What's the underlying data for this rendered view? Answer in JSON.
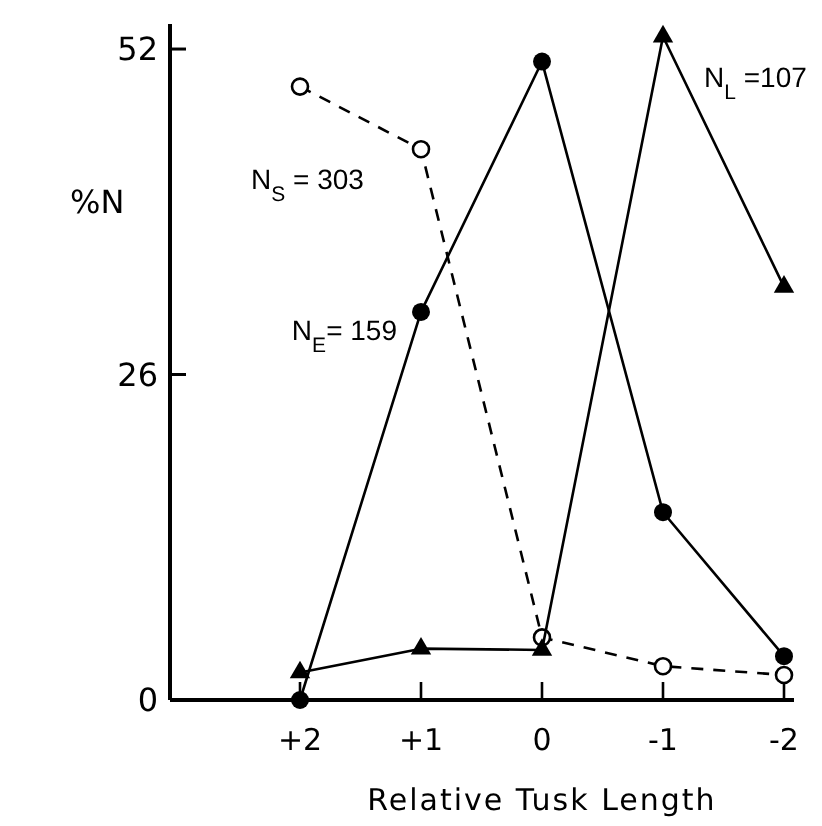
{
  "chart_data": {
    "type": "line",
    "xlabel": "Relative Tusk Length",
    "ylabel": "%N",
    "categories": [
      "+2",
      "+1",
      "0",
      "-1",
      "-2"
    ],
    "series": [
      {
        "name": "N$_{S}$ = 303",
        "color": "#000000",
        "values": [
          49,
          44,
          5,
          2.7,
          2
        ],
        "marker": "circle-open",
        "line_style": "dashed"
      },
      {
        "name": "N$_{E}$= 159",
        "color": "#000000",
        "values": [
          0,
          31,
          51,
          15,
          3.5
        ],
        "marker": "circle",
        "line_style": "solid"
      },
      {
        "name": "N$_{L}$ =107",
        "color": "#000000",
        "values": [
          2.2,
          4.1,
          4,
          53,
          33
        ],
        "marker": "triangle",
        "line_style": "solid"
      }
    ],
    "ylim": [
      0,
      54
    ],
    "yticks": [
      0,
      26,
      52
    ],
    "grid": false,
    "legend": false
  }
}
